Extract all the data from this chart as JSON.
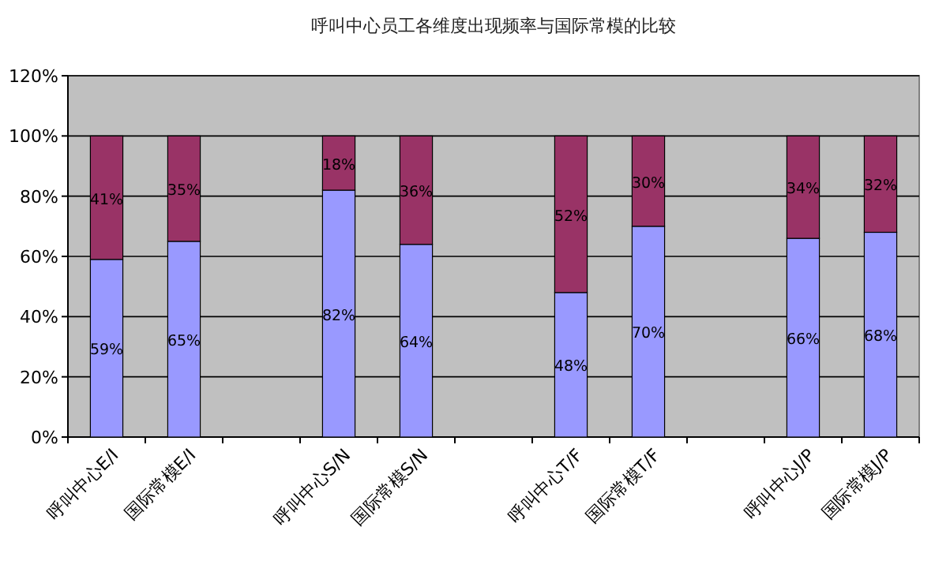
{
  "chart_data": {
    "type": "bar",
    "stacked": true,
    "title": "呼叫中心员工各维度出现频率与国际常模的比较",
    "categories": [
      "呼叫中心E/I",
      "国际常模E/I",
      null,
      "呼叫中心S/N",
      "国际常模S/N",
      null,
      "呼叫中心T/F",
      "国际常模T/F",
      null,
      "呼叫中心J/P",
      "国际常模J/P"
    ],
    "series": [
      {
        "color": "#9999ff",
        "values": [
          59,
          65,
          null,
          82,
          64,
          null,
          48,
          70,
          null,
          66,
          68
        ],
        "value_labels": [
          "59%",
          "65%",
          null,
          "82%",
          "64%",
          null,
          "48%",
          "70%",
          null,
          "66%",
          "68%"
        ]
      },
      {
        "color": "#993366",
        "values": [
          41,
          35,
          null,
          18,
          36,
          null,
          52,
          30,
          null,
          34,
          32
        ],
        "value_labels": [
          "41%",
          "35%",
          null,
          "18%",
          "36%",
          null,
          "52%",
          "30%",
          null,
          "34%",
          "32%"
        ]
      }
    ],
    "ylim": [
      0,
      120
    ],
    "yticks": [
      {
        "value": 0,
        "label": "0%"
      },
      {
        "value": 20,
        "label": "20%"
      },
      {
        "value": 40,
        "label": "40%"
      },
      {
        "value": 60,
        "label": "60%"
      },
      {
        "value": 80,
        "label": "80%"
      },
      {
        "value": 100,
        "label": "100%"
      },
      {
        "value": 120,
        "label": "120%"
      }
    ],
    "grid": "y"
  }
}
